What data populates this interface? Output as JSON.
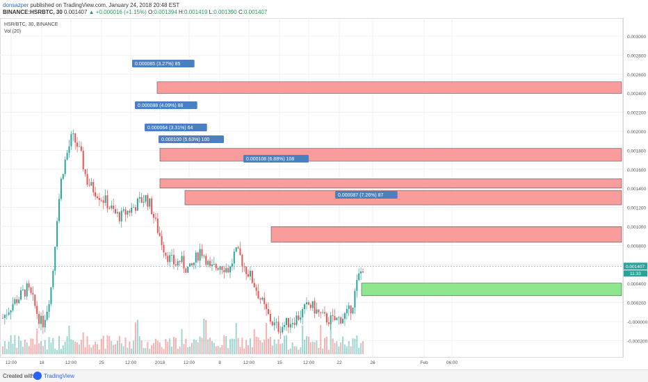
{
  "header": {
    "user": "donsazper",
    "published": "published on TradingView.com, January 24, 2018 20:48 EST",
    "symbol": "BINANCE:HSRBTC, 30",
    "ohlc_open_price": "0.001407",
    "change": "+0.000016 (+1.15%)",
    "o_label": "O:",
    "o_value": "0.001394",
    "h_label": "H:",
    "h_value": "0.001419",
    "l_label": "L:",
    "l_value": "0.001390",
    "c_label": "C:",
    "c_value": "0.001407"
  },
  "overlay": {
    "symbol_line": "HSR/BTC, 30, BINANCE",
    "volume_line": "Vol (20)"
  },
  "colors": {
    "up": "#26a69a",
    "down": "#ef5350",
    "zone_red": "#f89c9c",
    "zone_green": "#8ee68e",
    "label_bg": "#4a7fc1",
    "grid": "#eef0f3"
  },
  "chart_data": {
    "type": "candlestick",
    "symbol": "HSR/BTC",
    "interval": "30",
    "exchange": "BINANCE",
    "price_range": [
      0.00078,
      0.00312
    ],
    "price_ticks": [
      "0.003000",
      "0.002800",
      "0.002600",
      "0.002400",
      "0.002200",
      "0.002000",
      "0.001800",
      "0.001600",
      "0.001400",
      "0.001200",
      "0.001000",
      "0.000800",
      "0.000600",
      "0.000400",
      "0.000200",
      "-0.000000",
      "-0.000200"
    ],
    "x_ticks": [
      "12:00",
      "18",
      "12:00",
      "25",
      "12:00",
      "2018",
      "12:00",
      "8",
      "12:00",
      "15",
      "12:00",
      "22",
      "26",
      "Feb",
      "06:00"
    ],
    "last_price": "0.001407",
    "countdown": "11:33",
    "price_path_approx": [
      0.00105,
      0.0011,
      0.00115,
      0.00118,
      0.00122,
      0.00125,
      0.00118,
      0.00108,
      0.001,
      0.00112,
      0.0013,
      0.00175,
      0.00205,
      0.00218,
      0.0023,
      0.00225,
      0.00215,
      0.002,
      0.00195,
      0.00192,
      0.00188,
      0.00185,
      0.0018,
      0.00176,
      0.00175,
      0.00178,
      0.0018,
      0.00183,
      0.00186,
      0.00188,
      0.00182,
      0.0017,
      0.0016,
      0.0015,
      0.00145,
      0.00142,
      0.00145,
      0.0014,
      0.00138,
      0.00145,
      0.00152,
      0.00148,
      0.00138,
      0.0014,
      0.00142,
      0.0014,
      0.00138,
      0.0015,
      0.00148,
      0.0014,
      0.00135,
      0.00128,
      0.0012,
      0.00112,
      0.00105,
      0.001,
      0.00098,
      0.001,
      0.00102,
      0.00104,
      0.00106,
      0.0011,
      0.00114,
      0.00112,
      0.00108,
      0.00105,
      0.00104,
      0.00103,
      0.00104,
      0.00106,
      0.00108,
      0.00116,
      0.00132,
      0.0014
    ],
    "zones": [
      {
        "label": "0.000085 (3.27%) 85",
        "color": "red",
        "top": 0.00268,
        "bottom": 0.0026
      },
      {
        "label": "0.000088 (4.09%) 88",
        "color": "red",
        "top": 0.00222,
        "bottom": 0.002132
      },
      {
        "label": "0.000064 (3.31%) 64",
        "color": "red",
        "top": 0.00201,
        "bottom": 0.001946
      },
      {
        "label": "0.000100 (5.63%) 100",
        "color": "red",
        "top": 0.00193,
        "bottom": 0.00183
      },
      {
        "label": "0.000108 (6.88%) 108",
        "color": "red",
        "top": 0.00168,
        "bottom": 0.001572
      },
      {
        "label": "0.000087 (7.26%) 87",
        "color": "green",
        "top": 0.00129,
        "bottom": 0.001203
      }
    ]
  },
  "footer": {
    "created": "Created with",
    "brand": "TradingView"
  }
}
